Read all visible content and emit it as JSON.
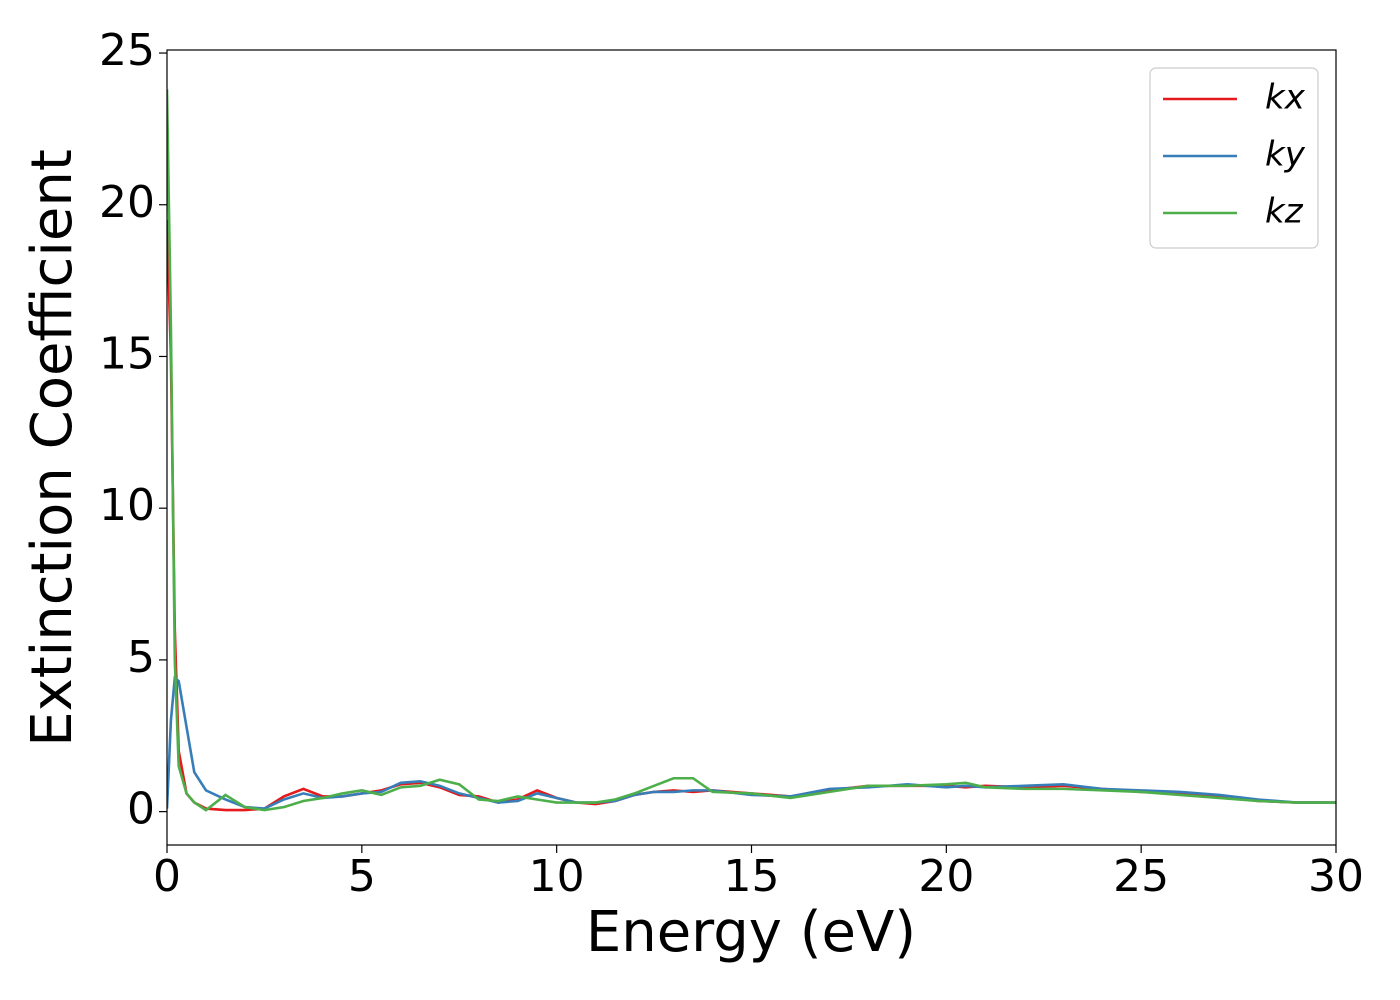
{
  "chart_data": {
    "type": "line",
    "xlabel": "Energy (eV)",
    "ylabel": "Extinction Coefficient",
    "x": [
      0,
      0.1,
      0.2,
      0.3,
      0.5,
      0.7,
      1,
      1.5,
      2,
      2.5,
      3,
      3.5,
      4,
      4.5,
      5,
      5.5,
      6,
      6.5,
      7,
      7.5,
      8,
      8.5,
      9,
      9.5,
      10,
      10.5,
      11,
      11.5,
      12,
      12.5,
      13,
      13.5,
      14,
      15,
      16,
      17,
      18,
      19,
      20,
      20.5,
      21,
      22,
      23,
      24,
      25,
      26,
      27,
      28,
      29,
      30
    ],
    "series": [
      {
        "name": "kx",
        "color": "#e41a1c",
        "values": [
          19.5,
          15,
          6,
          2,
          0.6,
          0.3,
          0.1,
          0.05,
          0.05,
          0.1,
          0.5,
          0.75,
          0.5,
          0.5,
          0.6,
          0.7,
          0.9,
          0.95,
          0.8,
          0.55,
          0.5,
          0.3,
          0.4,
          0.7,
          0.45,
          0.3,
          0.25,
          0.35,
          0.55,
          0.65,
          0.7,
          0.65,
          0.7,
          0.6,
          0.5,
          0.7,
          0.85,
          0.85,
          0.85,
          0.8,
          0.85,
          0.8,
          0.85,
          0.75,
          0.65,
          0.6,
          0.5,
          0.35,
          0.3,
          0.3
        ]
      },
      {
        "name": "ky",
        "color": "#377eb8",
        "values": [
          0.1,
          3,
          4.4,
          4.3,
          2.8,
          1.3,
          0.7,
          0.4,
          0.15,
          0.1,
          0.4,
          0.6,
          0.45,
          0.5,
          0.6,
          0.65,
          0.95,
          1.0,
          0.85,
          0.6,
          0.45,
          0.3,
          0.35,
          0.6,
          0.45,
          0.3,
          0.3,
          0.35,
          0.55,
          0.65,
          0.65,
          0.7,
          0.7,
          0.55,
          0.5,
          0.75,
          0.8,
          0.9,
          0.8,
          0.85,
          0.8,
          0.85,
          0.9,
          0.75,
          0.7,
          0.65,
          0.55,
          0.4,
          0.3,
          0.3
        ]
      },
      {
        "name": "kz",
        "color": "#4daf4a",
        "values": [
          23.8,
          16,
          5,
          1.5,
          0.6,
          0.3,
          0.05,
          0.55,
          0.15,
          0.05,
          0.15,
          0.35,
          0.45,
          0.6,
          0.7,
          0.55,
          0.8,
          0.85,
          1.05,
          0.9,
          0.4,
          0.35,
          0.5,
          0.4,
          0.3,
          0.3,
          0.3,
          0.4,
          0.6,
          0.85,
          1.1,
          1.1,
          0.65,
          0.6,
          0.45,
          0.65,
          0.85,
          0.85,
          0.9,
          0.95,
          0.8,
          0.75,
          0.75,
          0.7,
          0.65,
          0.55,
          0.45,
          0.35,
          0.3,
          0.3
        ]
      }
    ],
    "xlim": [
      0,
      30
    ],
    "xticks": [
      0,
      5,
      10,
      15,
      20,
      25,
      30
    ],
    "ylim": [
      -1.1,
      25.1
    ],
    "yticks": [
      0,
      5,
      10,
      15,
      20,
      25
    ],
    "legend": "upper right",
    "grid": false
  }
}
